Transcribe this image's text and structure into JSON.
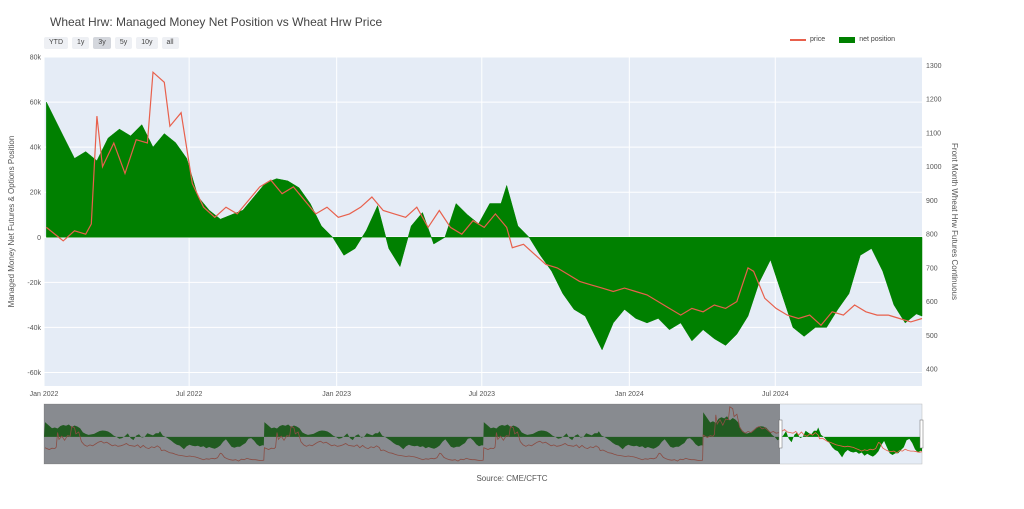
{
  "title": "Wheat Hrw: Managed Money Net Position vs Wheat Hrw Price",
  "range_buttons": [
    "YTD",
    "1y",
    "3y",
    "5y",
    "10y",
    "all"
  ],
  "active_range": "3y",
  "legend": {
    "price": "price",
    "net": "net position"
  },
  "source": "Source: CME/CFTC",
  "colors": {
    "price": "#e8604c",
    "net": "#008000",
    "plot_bg": "#e5ecf6",
    "grid": "#ffffff"
  },
  "chart_data": {
    "type": "area",
    "title": "Wheat Hrw: Managed Money Net Position vs Wheat Hrw Price",
    "ylabel": "Managed Money Net Futures & Options Position",
    "y2label": "Front Month Wheat Hrw Futures Continuous",
    "xlim": [
      "2022-01-01",
      "2024-12-31"
    ],
    "ylim": [
      -66000,
      80000
    ],
    "y2lim": [
      350,
      1325
    ],
    "x_ticks": [
      "Jan 2022",
      "Jul 2022",
      "Jan 2023",
      "Jul 2023",
      "Jan 2024",
      "Jul 2024"
    ],
    "y_ticks": [
      "80k",
      "60k",
      "40k",
      "20k",
      "0",
      "-20k",
      "-40k",
      "-60k"
    ],
    "y2_ticks": [
      "1300",
      "1200",
      "1100",
      "1000",
      "900",
      "800",
      "700",
      "600",
      "500",
      "400"
    ],
    "grid": true,
    "legend_position": "top-right",
    "series": [
      {
        "name": "net position",
        "axis": "y",
        "points": [
          [
            "2022-01-04",
            60000
          ],
          [
            "2022-01-25",
            45000
          ],
          [
            "2022-02-08",
            35000
          ],
          [
            "2022-02-22",
            38000
          ],
          [
            "2022-03-08",
            34000
          ],
          [
            "2022-03-22",
            44000
          ],
          [
            "2022-04-05",
            48000
          ],
          [
            "2022-04-19",
            45000
          ],
          [
            "2022-05-03",
            50000
          ],
          [
            "2022-05-17",
            40000
          ],
          [
            "2022-05-31",
            46000
          ],
          [
            "2022-06-14",
            42000
          ],
          [
            "2022-06-28",
            35000
          ],
          [
            "2022-07-12",
            18000
          ],
          [
            "2022-07-26",
            12000
          ],
          [
            "2022-08-09",
            8000
          ],
          [
            "2022-08-23",
            10000
          ],
          [
            "2022-09-06",
            12000
          ],
          [
            "2022-09-20",
            18000
          ],
          [
            "2022-10-04",
            24000
          ],
          [
            "2022-10-18",
            26000
          ],
          [
            "2022-11-01",
            25000
          ],
          [
            "2022-11-15",
            22000
          ],
          [
            "2022-11-29",
            15000
          ],
          [
            "2022-12-13",
            5000
          ],
          [
            "2022-12-27",
            0
          ],
          [
            "2023-01-10",
            -8000
          ],
          [
            "2023-01-24",
            -5000
          ],
          [
            "2023-02-07",
            3000
          ],
          [
            "2023-02-21",
            14000
          ],
          [
            "2023-03-07",
            -5000
          ],
          [
            "2023-03-21",
            -13000
          ],
          [
            "2023-04-04",
            5000
          ],
          [
            "2023-04-18",
            11000
          ],
          [
            "2023-05-02",
            -3000
          ],
          [
            "2023-05-16",
            0
          ],
          [
            "2023-05-30",
            15000
          ],
          [
            "2023-06-13",
            10000
          ],
          [
            "2023-06-27",
            6000
          ],
          [
            "2023-07-11",
            15000
          ],
          [
            "2023-07-25",
            15000
          ],
          [
            "2023-08-01",
            23000
          ],
          [
            "2023-08-15",
            5000
          ],
          [
            "2023-08-29",
            0
          ],
          [
            "2023-09-12",
            -8000
          ],
          [
            "2023-09-26",
            -15000
          ],
          [
            "2023-10-10",
            -25000
          ],
          [
            "2023-10-24",
            -32000
          ],
          [
            "2023-11-07",
            -35000
          ],
          [
            "2023-11-21",
            -45000
          ],
          [
            "2023-11-28",
            -50000
          ],
          [
            "2023-12-12",
            -38000
          ],
          [
            "2023-12-26",
            -32000
          ],
          [
            "2024-01-09",
            -36000
          ],
          [
            "2024-01-23",
            -38000
          ],
          [
            "2024-02-06",
            -36000
          ],
          [
            "2024-02-20",
            -41000
          ],
          [
            "2024-03-05",
            -38000
          ],
          [
            "2024-03-19",
            -46000
          ],
          [
            "2024-04-02",
            -41000
          ],
          [
            "2024-04-16",
            -45000
          ],
          [
            "2024-04-30",
            -48000
          ],
          [
            "2024-05-14",
            -43000
          ],
          [
            "2024-05-28",
            -35000
          ],
          [
            "2024-06-11",
            -20000
          ],
          [
            "2024-06-25",
            -10000
          ],
          [
            "2024-07-09",
            -25000
          ],
          [
            "2024-07-23",
            -40000
          ],
          [
            "2024-08-06",
            -44000
          ],
          [
            "2024-08-20",
            -40000
          ],
          [
            "2024-09-03",
            -40000
          ],
          [
            "2024-09-17",
            -32000
          ],
          [
            "2024-10-01",
            -25000
          ],
          [
            "2024-10-15",
            -8000
          ],
          [
            "2024-10-29",
            -5000
          ],
          [
            "2024-11-12",
            -15000
          ],
          [
            "2024-11-26",
            -30000
          ],
          [
            "2024-12-10",
            -38000
          ],
          [
            "2024-12-24",
            -34000
          ],
          [
            "2024-12-31",
            -35000
          ]
        ]
      },
      {
        "name": "price",
        "axis": "y2",
        "points": [
          [
            "2022-01-04",
            820
          ],
          [
            "2022-01-25",
            780
          ],
          [
            "2022-02-08",
            810
          ],
          [
            "2022-02-22",
            800
          ],
          [
            "2022-03-01",
            830
          ],
          [
            "2022-03-08",
            1150
          ],
          [
            "2022-03-15",
            1000
          ],
          [
            "2022-03-29",
            1070
          ],
          [
            "2022-04-12",
            980
          ],
          [
            "2022-04-26",
            1080
          ],
          [
            "2022-05-10",
            1070
          ],
          [
            "2022-05-17",
            1280
          ],
          [
            "2022-05-31",
            1250
          ],
          [
            "2022-06-07",
            1120
          ],
          [
            "2022-06-21",
            1160
          ],
          [
            "2022-07-05",
            950
          ],
          [
            "2022-07-19",
            880
          ],
          [
            "2022-08-02",
            850
          ],
          [
            "2022-08-16",
            880
          ],
          [
            "2022-08-30",
            860
          ],
          [
            "2022-09-13",
            900
          ],
          [
            "2022-09-27",
            940
          ],
          [
            "2022-10-11",
            960
          ],
          [
            "2022-10-25",
            920
          ],
          [
            "2022-11-08",
            940
          ],
          [
            "2022-11-22",
            900
          ],
          [
            "2022-12-06",
            860
          ],
          [
            "2022-12-20",
            880
          ],
          [
            "2023-01-03",
            850
          ],
          [
            "2023-01-17",
            860
          ],
          [
            "2023-01-31",
            880
          ],
          [
            "2023-02-14",
            910
          ],
          [
            "2023-02-28",
            870
          ],
          [
            "2023-03-14",
            860
          ],
          [
            "2023-03-28",
            850
          ],
          [
            "2023-04-11",
            880
          ],
          [
            "2023-04-25",
            820
          ],
          [
            "2023-05-09",
            870
          ],
          [
            "2023-05-23",
            820
          ],
          [
            "2023-06-06",
            800
          ],
          [
            "2023-06-20",
            840
          ],
          [
            "2023-07-04",
            820
          ],
          [
            "2023-07-18",
            860
          ],
          [
            "2023-08-01",
            820
          ],
          [
            "2023-08-08",
            760
          ],
          [
            "2023-08-22",
            770
          ],
          [
            "2023-09-05",
            740
          ],
          [
            "2023-09-19",
            710
          ],
          [
            "2023-10-03",
            700
          ],
          [
            "2023-10-17",
            680
          ],
          [
            "2023-10-31",
            660
          ],
          [
            "2023-11-14",
            650
          ],
          [
            "2023-11-28",
            640
          ],
          [
            "2023-12-12",
            630
          ],
          [
            "2023-12-26",
            640
          ],
          [
            "2024-01-09",
            630
          ],
          [
            "2024-01-23",
            620
          ],
          [
            "2024-02-06",
            600
          ],
          [
            "2024-02-20",
            580
          ],
          [
            "2024-03-05",
            560
          ],
          [
            "2024-03-19",
            580
          ],
          [
            "2024-04-02",
            570
          ],
          [
            "2024-04-16",
            590
          ],
          [
            "2024-04-30",
            580
          ],
          [
            "2024-05-14",
            600
          ],
          [
            "2024-05-28",
            700
          ],
          [
            "2024-06-04",
            690
          ],
          [
            "2024-06-18",
            610
          ],
          [
            "2024-07-02",
            580
          ],
          [
            "2024-07-16",
            560
          ],
          [
            "2024-07-30",
            550
          ],
          [
            "2024-08-13",
            560
          ],
          [
            "2024-08-27",
            530
          ],
          [
            "2024-09-10",
            570
          ],
          [
            "2024-09-24",
            560
          ],
          [
            "2024-10-08",
            590
          ],
          [
            "2024-10-22",
            570
          ],
          [
            "2024-11-05",
            560
          ],
          [
            "2024-11-19",
            560
          ],
          [
            "2024-12-03",
            550
          ],
          [
            "2024-12-17",
            540
          ],
          [
            "2024-12-31",
            550
          ]
        ]
      }
    ]
  }
}
